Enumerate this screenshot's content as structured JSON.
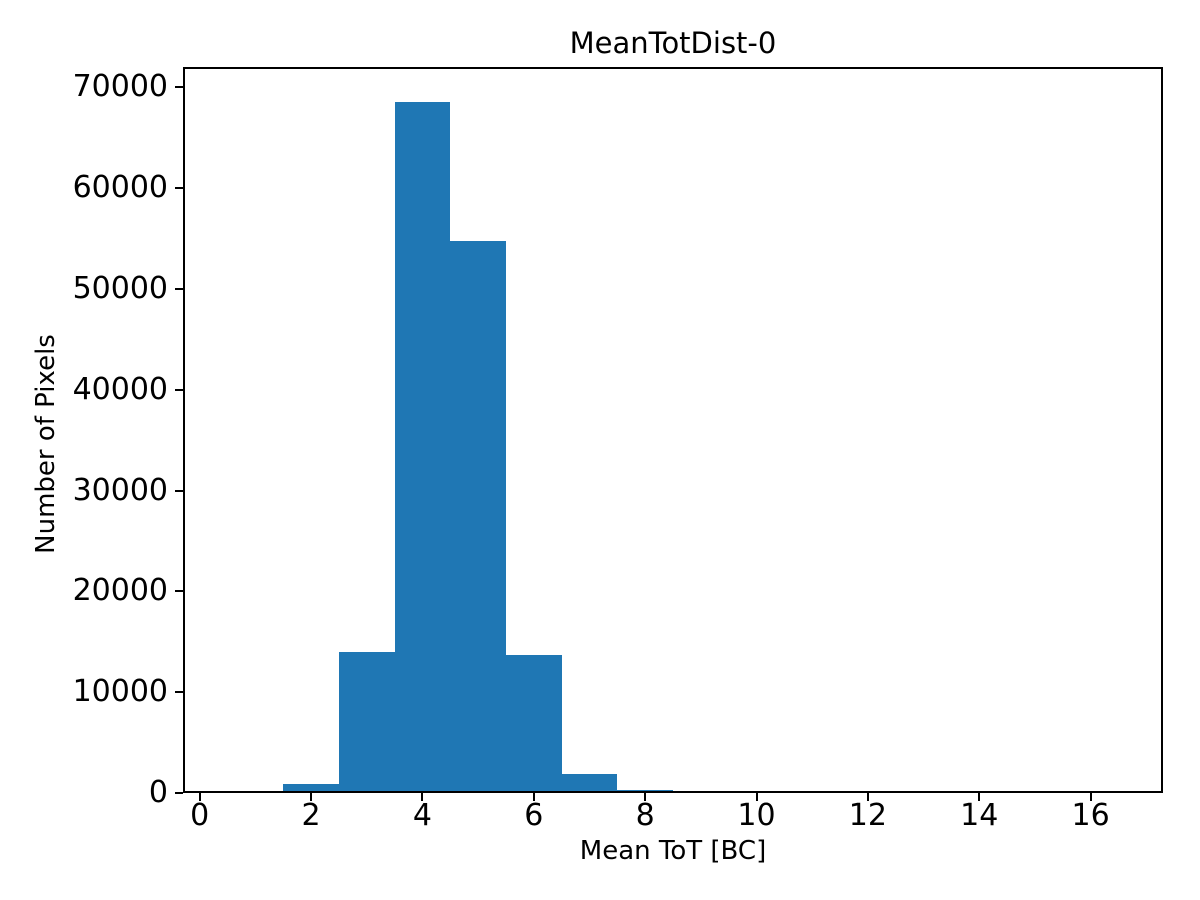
{
  "chart_data": {
    "type": "bar",
    "subtype": "histogram",
    "title": "MeanTotDist-0",
    "xlabel": "Mean ToT [BC]",
    "ylabel": "Number of Pixels",
    "bin_edges": [
      1.5,
      2.5,
      3.5,
      4.5,
      5.5,
      6.5,
      7.5,
      8.5
    ],
    "values": [
      900,
      14000,
      68600,
      54800,
      13700,
      1900,
      300
    ],
    "bar_color": "#1f77b4",
    "axis_color": "#000000",
    "background_color": "#ffffff",
    "xlim": [
      -0.3,
      17.3
    ],
    "ylim": [
      0,
      72030
    ],
    "x_ticks": [
      0,
      2,
      4,
      6,
      8,
      10,
      12,
      14,
      16
    ],
    "y_ticks": [
      0,
      10000,
      20000,
      30000,
      40000,
      50000,
      60000,
      70000
    ],
    "grid": false,
    "legend": null
  }
}
